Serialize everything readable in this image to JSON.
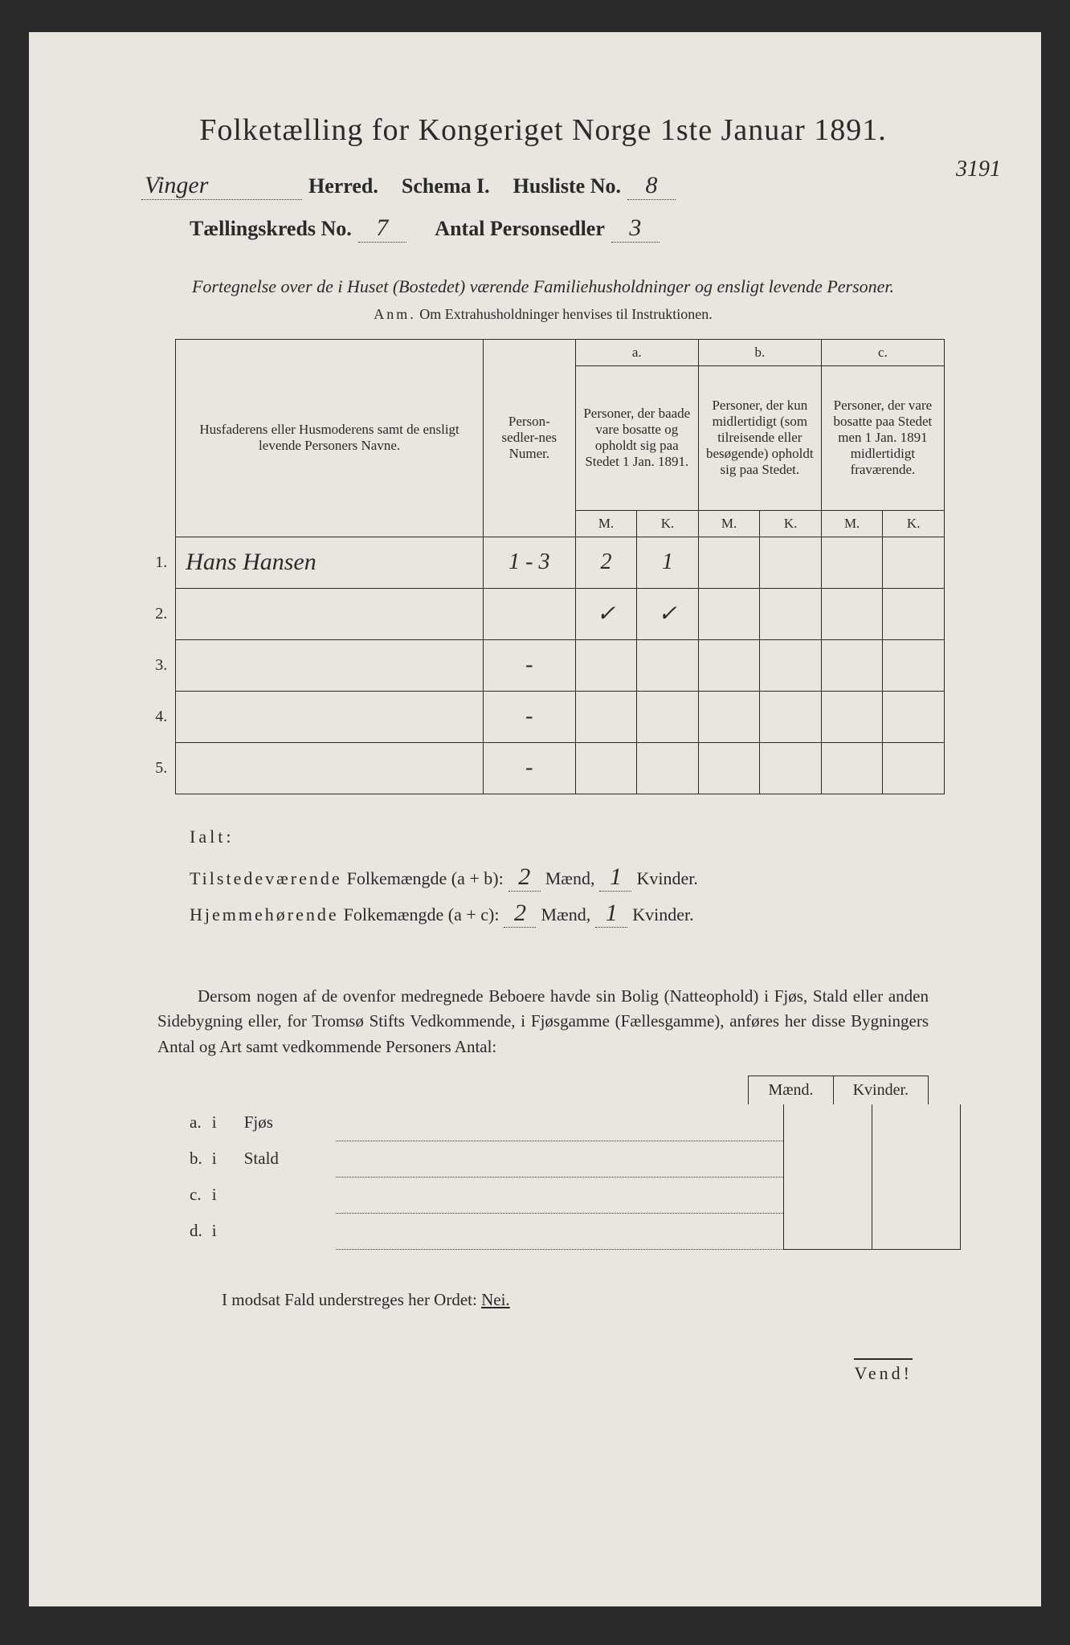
{
  "title": "Folketælling for Kongeriget Norge 1ste Januar 1891.",
  "header": {
    "herred_value": "Vinger",
    "herred_label": "Herred.",
    "schema_label": "Schema I.",
    "husliste_label": "Husliste No.",
    "husliste_value": "8",
    "kreds_label": "Tællingskreds No.",
    "kreds_value": "7",
    "antal_label": "Antal Personsedler",
    "antal_value": "3",
    "margin_note": "3191"
  },
  "subtitle": "Fortegnelse over de i Huset (Bostedet) værende Familiehusholdninger og ensligt levende Personer.",
  "anm_label": "Anm.",
  "anm_text": "Om Extrahusholdninger henvises til Instruktionen.",
  "table": {
    "col_name": "Husfaderens eller Husmoderens samt de ensligt levende Personers Navne.",
    "col_num": "Person-sedler-nes Numer.",
    "col_a_label": "a.",
    "col_a": "Personer, der baade vare bosatte og opholdt sig paa Stedet 1 Jan. 1891.",
    "col_b_label": "b.",
    "col_b": "Personer, der kun midlertidigt (som tilreisende eller besøgende) opholdt sig paa Stedet.",
    "col_c_label": "c.",
    "col_c": "Personer, der vare bosatte paa Stedet men 1 Jan. 1891 midlertidigt fraværende.",
    "m": "M.",
    "k": "K.",
    "rows": [
      {
        "n": "1.",
        "name": "Hans Hansen",
        "num": "1 - 3",
        "am": "2",
        "ak": "1",
        "bm": "",
        "bk": "",
        "cm": "",
        "ck": ""
      },
      {
        "n": "2.",
        "name": "",
        "num": "",
        "am": "✓",
        "ak": "✓",
        "bm": "",
        "bk": "",
        "cm": "",
        "ck": ""
      },
      {
        "n": "3.",
        "name": "",
        "num": "-",
        "am": "",
        "ak": "",
        "bm": "",
        "bk": "",
        "cm": "",
        "ck": ""
      },
      {
        "n": "4.",
        "name": "",
        "num": "-",
        "am": "",
        "ak": "",
        "bm": "",
        "bk": "",
        "cm": "",
        "ck": ""
      },
      {
        "n": "5.",
        "name": "",
        "num": "-",
        "am": "",
        "ak": "",
        "bm": "",
        "bk": "",
        "cm": "",
        "ck": ""
      }
    ]
  },
  "ialt": "Ialt:",
  "totals": {
    "line1_a": "Tilstedeværende",
    "line1_b": "Folkemængde (a + b):",
    "line2_a": "Hjemmehørende",
    "line2_b": "Folkemængde (a + c):",
    "maend": "Mænd,",
    "kvinder": "Kvinder.",
    "t_m": "2",
    "t_k": "1",
    "h_m": "2",
    "h_k": "1"
  },
  "paragraph": "Dersom nogen af de ovenfor medregnede Beboere havde sin Bolig (Natteophold) i Fjøs, Stald eller anden Sidebygning eller, for Tromsø Stifts Vedkommende, i Fjøsgamme (Fællesgamme), anføres her disse Bygningers Antal og Art samt vedkommende Personers Antal:",
  "mk": {
    "m": "Mænd.",
    "k": "Kvinder."
  },
  "abcd": [
    {
      "l": "a.",
      "i": "i",
      "kind": "Fjøs"
    },
    {
      "l": "b.",
      "i": "i",
      "kind": "Stald"
    },
    {
      "l": "c.",
      "i": "i",
      "kind": ""
    },
    {
      "l": "d.",
      "i": "i",
      "kind": ""
    }
  ],
  "footer": "I modsat Fald understreges her Ordet:",
  "nei": "Nei.",
  "vend": "Vend!"
}
